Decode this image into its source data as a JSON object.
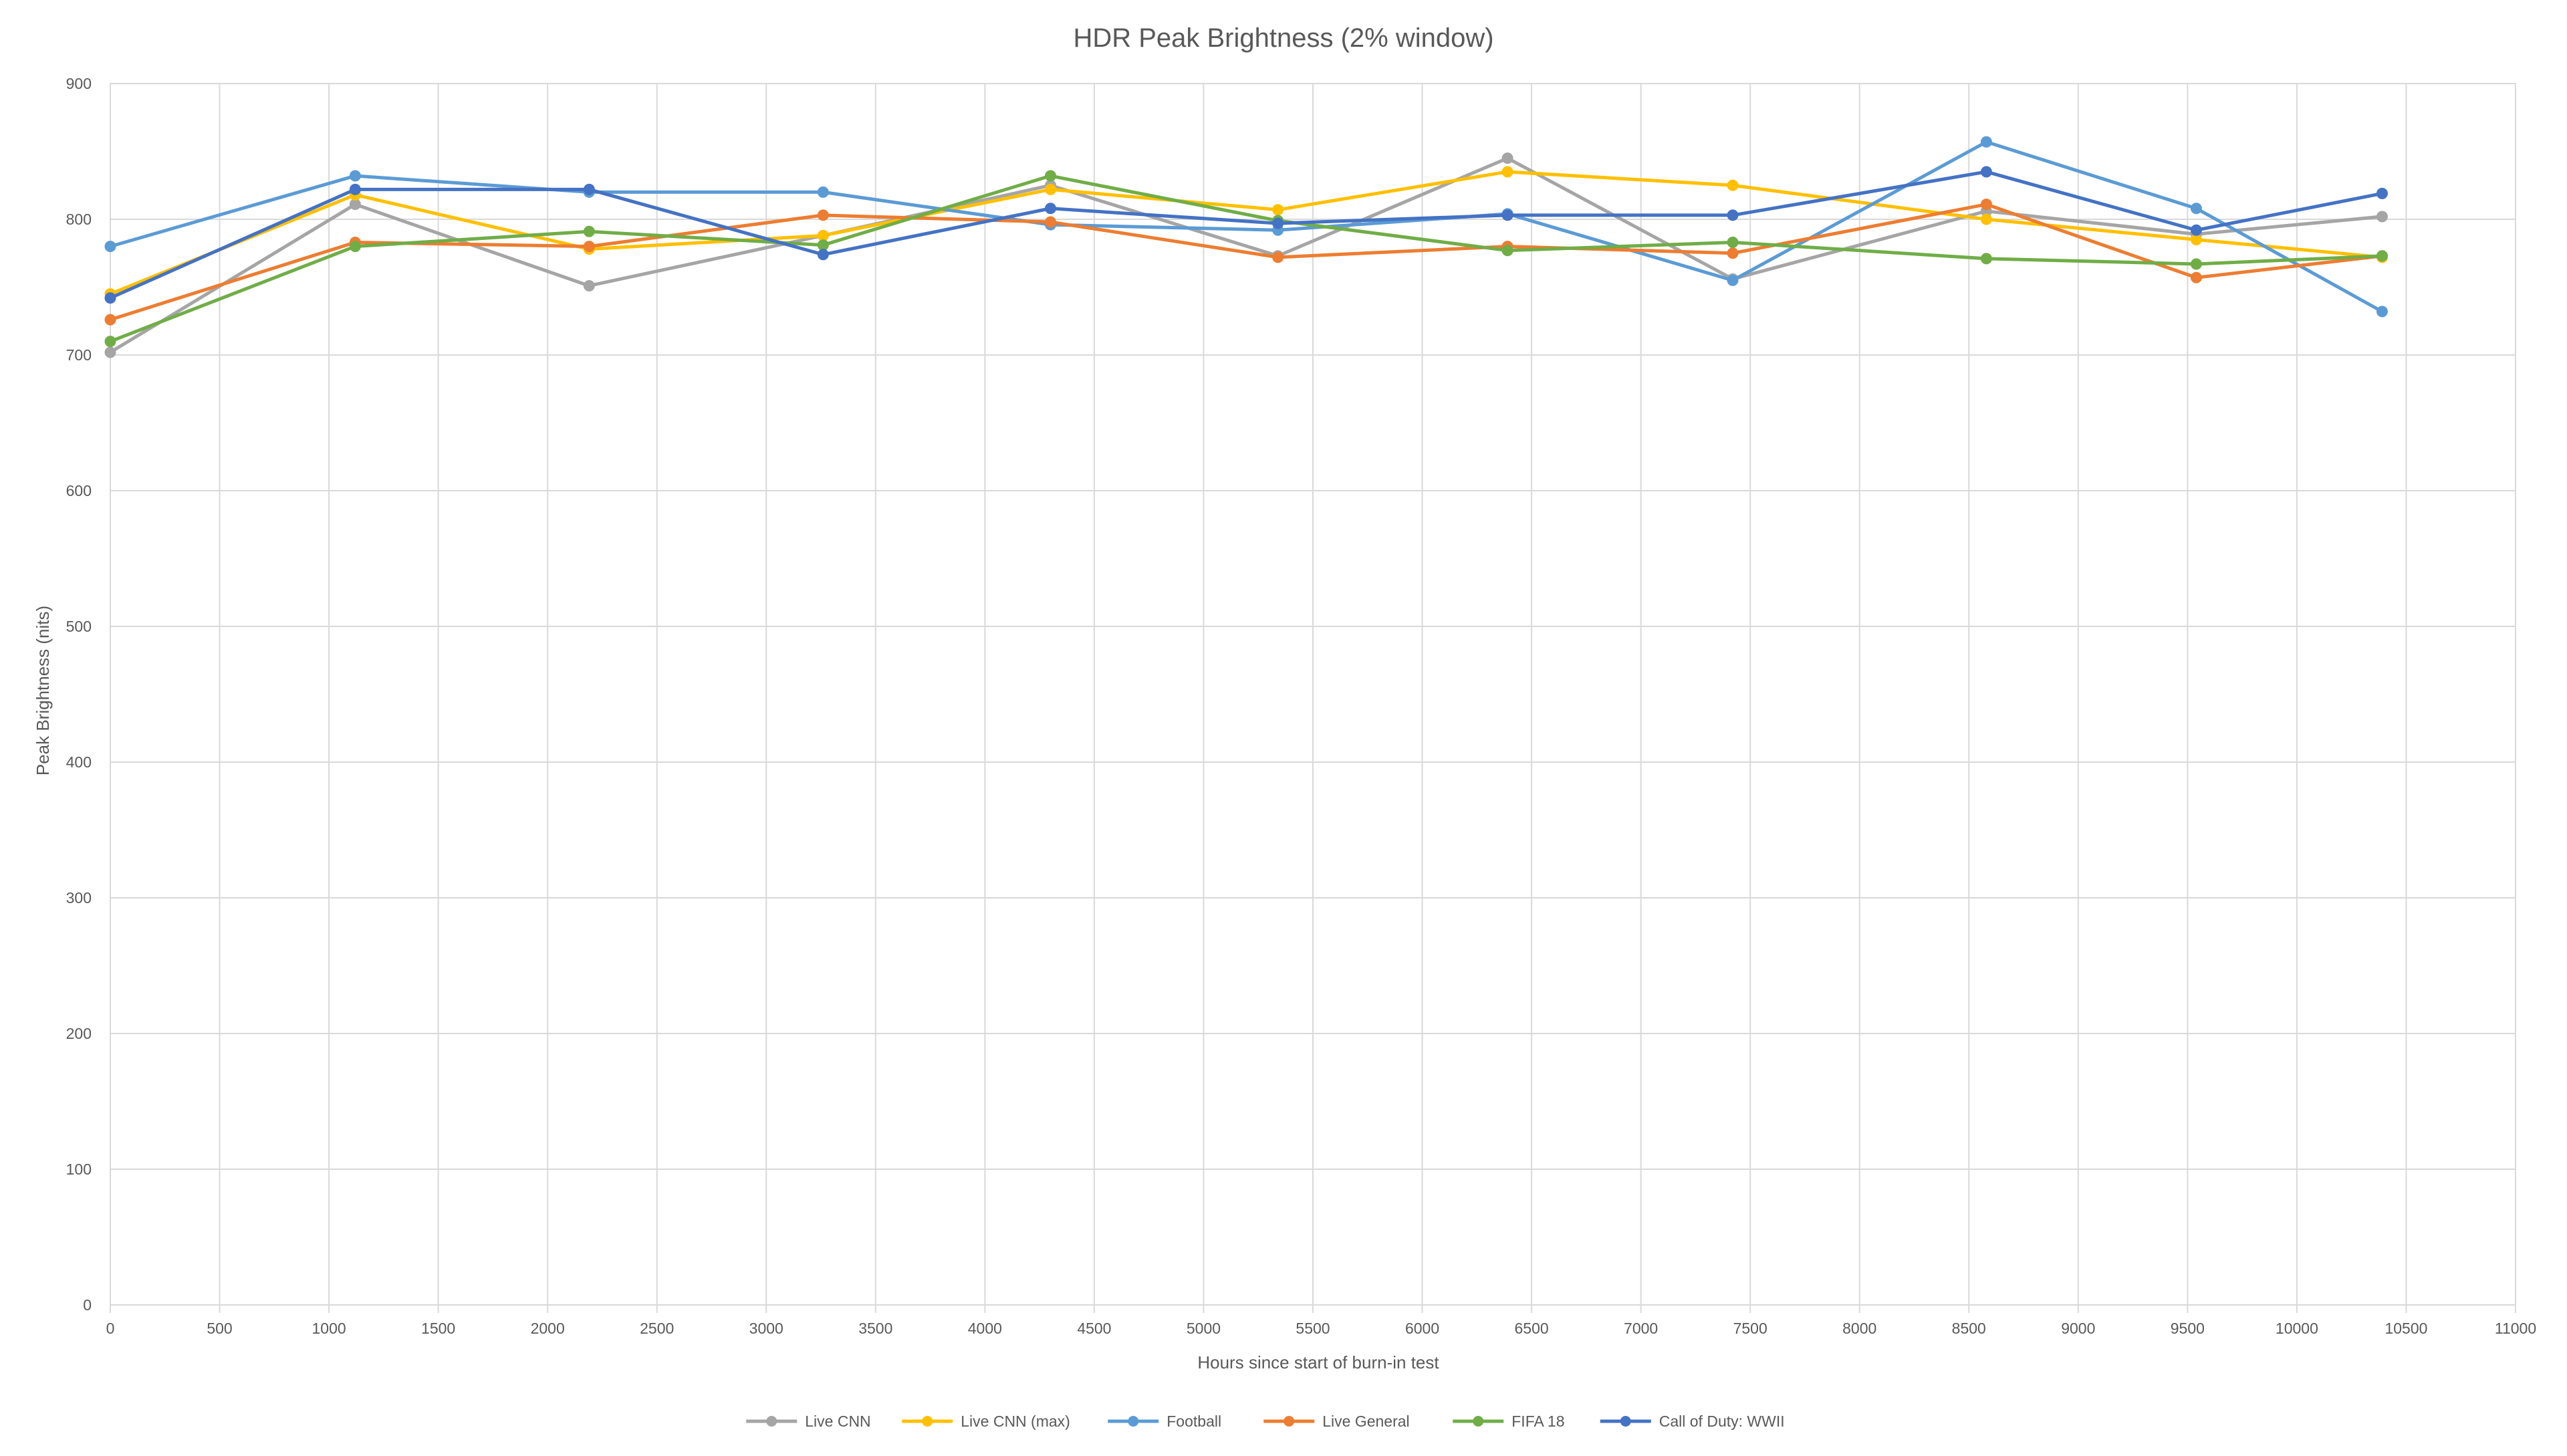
{
  "chart_data": {
    "type": "line",
    "title": "HDR Peak Brightness (2% window)",
    "xlabel": "Hours since start of burn-in test",
    "ylabel": "Peak Brightness (nits)",
    "xlim": [
      0,
      11000
    ],
    "ylim": [
      0,
      900
    ],
    "xticks": [
      0,
      500,
      1000,
      1500,
      2000,
      2500,
      3000,
      3500,
      4000,
      4500,
      5000,
      5500,
      6000,
      6500,
      7000,
      7500,
      8000,
      8500,
      9000,
      9500,
      10000,
      10500,
      11000
    ],
    "yticks": [
      0,
      100,
      200,
      300,
      400,
      500,
      600,
      700,
      800,
      900
    ],
    "grid": true,
    "legend_position": "bottom",
    "x": [
      0,
      1120,
      2190,
      3260,
      4300,
      5340,
      6390,
      7420,
      8580,
      9540,
      10390
    ],
    "series": [
      {
        "name": "Live CNN",
        "color": "#a5a5a5",
        "values": [
          702,
          811,
          751,
          788,
          825,
          773,
          845,
          756,
          806,
          789,
          802
        ]
      },
      {
        "name": "Live CNN (max)",
        "color": "#ffc000",
        "values": [
          745,
          818,
          778,
          788,
          822,
          807,
          835,
          825,
          800,
          785,
          772
        ]
      },
      {
        "name": "Football",
        "color": "#5b9bd5",
        "values": [
          780,
          832,
          820,
          820,
          796,
          792,
          804,
          755,
          857,
          808,
          732
        ]
      },
      {
        "name": "Live General",
        "color": "#ed7d31",
        "values": [
          726,
          783,
          780,
          803,
          798,
          772,
          780,
          775,
          811,
          757,
          773
        ]
      },
      {
        "name": "FIFA 18",
        "color": "#70ad47",
        "values": [
          710,
          780,
          791,
          781,
          832,
          799,
          777,
          783,
          771,
          767,
          773
        ]
      },
      {
        "name": "Call of Duty: WWII",
        "color": "#4472c4",
        "values": [
          742,
          822,
          822,
          774,
          808,
          797,
          803,
          803,
          835,
          792,
          819
        ]
      }
    ]
  },
  "colors": {
    "gridline": "#d9d9d9",
    "text": "#595959",
    "background": "#ffffff"
  }
}
